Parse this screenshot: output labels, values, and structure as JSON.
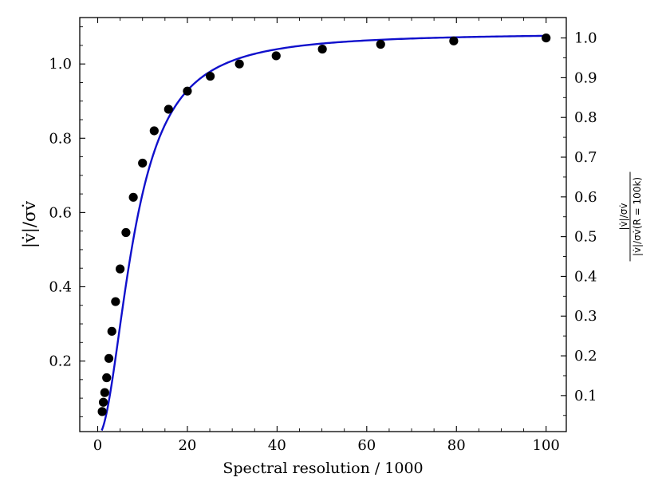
{
  "chart_data": {
    "type": "scatter",
    "xlabel": "Spectral resolution / 1000",
    "ylabel": "|v̇|/σv̇",
    "y2label_num": "|v̇|/σv̇",
    "y2label_den": "|v̇|/σv̇(R = 100k)",
    "xlim": [
      -4,
      104.5
    ],
    "ylim": [
      0.01,
      1.125
    ],
    "y2_scale_divisor": 1.07,
    "x_ticks": [
      0,
      20,
      40,
      60,
      80,
      100
    ],
    "x_tick_labels": [
      "0",
      "20",
      "40",
      "60",
      "80",
      "100"
    ],
    "y_ticks": [
      0.2,
      0.4,
      0.6,
      0.8,
      1.0
    ],
    "y_tick_labels": [
      "0.2",
      "0.4",
      "0.6",
      "0.8",
      "1.0"
    ],
    "y2_ticks": [
      0.1,
      0.2,
      0.3,
      0.4,
      0.5,
      0.6,
      0.7,
      0.8,
      0.9,
      1.0
    ],
    "y2_tick_labels": [
      "0.1",
      "0.2",
      "0.3",
      "0.4",
      "0.5",
      "0.6",
      "0.7",
      "0.8",
      "0.9",
      "1.0"
    ],
    "series": [
      {
        "type": "scatter",
        "color": "#000000",
        "x": [
          1.0,
          1.26,
          1.58,
          2.0,
          2.5,
          3.16,
          3.98,
          5.0,
          6.3,
          7.94,
          10.0,
          12.6,
          15.8,
          20.0,
          25.1,
          31.6,
          39.8,
          50.1,
          63.1,
          79.4,
          100.0
        ],
        "y": [
          0.064,
          0.089,
          0.115,
          0.155,
          0.207,
          0.28,
          0.36,
          0.448,
          0.546,
          0.641,
          0.733,
          0.82,
          0.878,
          0.927,
          0.967,
          1.0,
          1.022,
          1.04,
          1.053,
          1.062,
          1.07
        ]
      },
      {
        "type": "line",
        "color": "#1010cc",
        "model": "saturating fit y = a·x² / (b² + x²)",
        "a": 1.083,
        "b": 8.15
      }
    ]
  }
}
